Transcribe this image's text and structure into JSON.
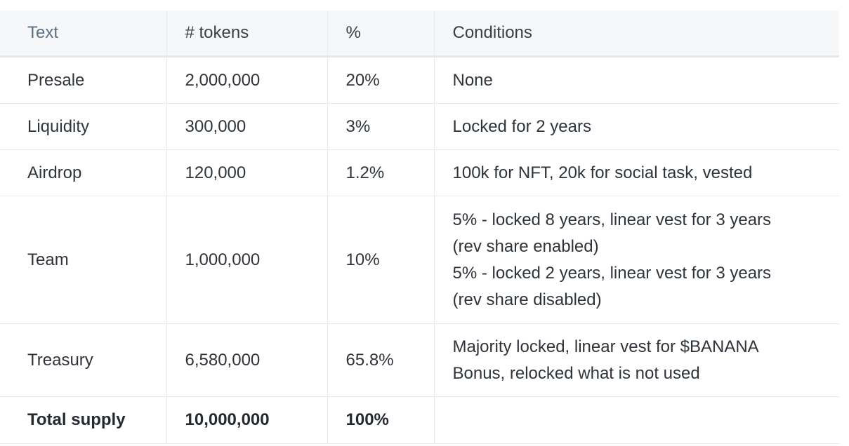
{
  "table": {
    "headers": [
      "Text",
      "# tokens",
      "%",
      "Conditions"
    ],
    "rows": [
      {
        "text": "Presale",
        "tokens": "2,000,000",
        "percent": "20%",
        "conditions": [
          "None"
        ]
      },
      {
        "text": "Liquidity",
        "tokens": "300,000",
        "percent": "3%",
        "conditions": [
          "Locked for 2 years"
        ]
      },
      {
        "text": "Airdrop",
        "tokens": "120,000",
        "percent": "1.2%",
        "conditions": [
          "100k for NFT, 20k for social task, vested"
        ]
      },
      {
        "text": "Team",
        "tokens": "1,000,000",
        "percent": "10%",
        "conditions": [
          "5% - locked 8 years, linear vest for 3 years",
          "(rev share enabled)",
          "5% - locked 2 years, linear vest for 3 years",
          "(rev share disabled)"
        ]
      },
      {
        "text": "Treasury",
        "tokens": "6,580,000",
        "percent": "65.8%",
        "conditions": [
          "Majority locked, linear vest for $BANANA",
          "Bonus, relocked what is not used"
        ]
      }
    ],
    "total": {
      "text": "Total supply",
      "tokens": "10,000,000",
      "percent": "100%",
      "conditions": ""
    }
  }
}
